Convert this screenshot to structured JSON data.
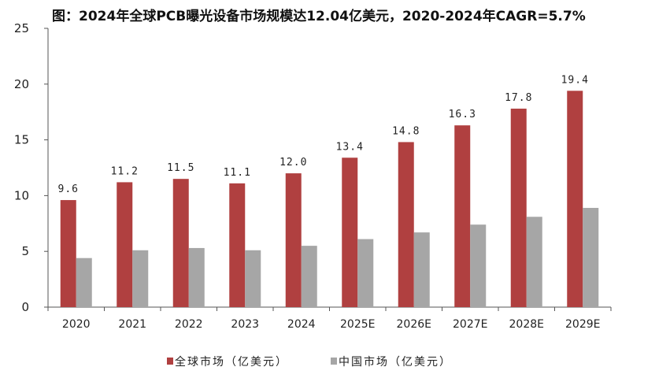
{
  "chart_data": {
    "type": "bar",
    "title": "图：2024年全球PCB曝光设备市场规模达12.04亿美元，2020-2024年CAGR=5.7%",
    "xlabel": "",
    "ylabel": "",
    "ylim": [
      0,
      25
    ],
    "yticks": [
      0,
      5,
      10,
      15,
      20,
      25
    ],
    "grid": false,
    "legend_position": "bottom",
    "categories": [
      "2020",
      "2021",
      "2022",
      "2023",
      "2024",
      "2025E",
      "2026E",
      "2027E",
      "2028E",
      "2029E"
    ],
    "series": [
      {
        "name": "全球市场（亿美元）",
        "color": "#b04040",
        "values": [
          9.6,
          11.2,
          11.5,
          11.1,
          12.0,
          13.4,
          14.8,
          16.3,
          17.8,
          19.4
        ],
        "data_labels": [
          "9.6",
          "11.2",
          "11.5",
          "11.1",
          "12.0",
          "13.4",
          "14.8",
          "16.3",
          "17.8",
          "19.4"
        ]
      },
      {
        "name": "中国市场（亿美元）",
        "color": "#a6a6a6",
        "values": [
          4.4,
          5.1,
          5.3,
          5.1,
          5.5,
          6.1,
          6.7,
          7.4,
          8.1,
          8.9
        ]
      }
    ]
  }
}
